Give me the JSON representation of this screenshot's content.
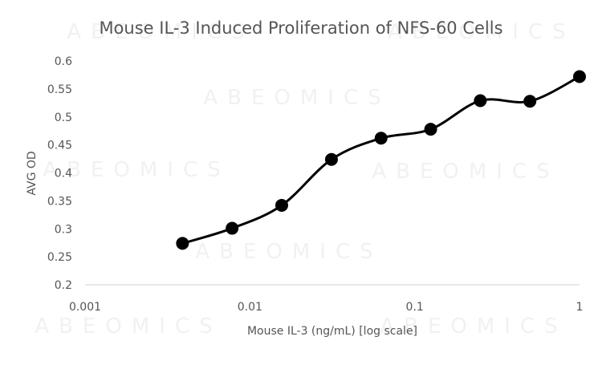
{
  "chart_data": {
    "type": "line",
    "title": "Mouse IL-3 Induced Proliferation of NFS-60 Cells",
    "xlabel": "Mouse IL-3 (ng/mL) [log scale]",
    "ylabel": "AVG OD",
    "xscale": "log",
    "xlim": [
      0.001,
      1
    ],
    "ylim": [
      0.2,
      0.6
    ],
    "xticks": [
      {
        "value": 0.001,
        "label": "0.001"
      },
      {
        "value": 0.01,
        "label": "0.01"
      },
      {
        "value": 0.1,
        "label": "0.1"
      },
      {
        "value": 1,
        "label": "1"
      }
    ],
    "yticks": [
      {
        "value": 0.2,
        "label": "0.2"
      },
      {
        "value": 0.25,
        "label": "0.25"
      },
      {
        "value": 0.3,
        "label": "0.3"
      },
      {
        "value": 0.35,
        "label": "0.35"
      },
      {
        "value": 0.4,
        "label": "0.4"
      },
      {
        "value": 0.45,
        "label": "0.45"
      },
      {
        "value": 0.5,
        "label": "0.5"
      },
      {
        "value": 0.55,
        "label": "0.55"
      },
      {
        "value": 0.6,
        "label": "0.6"
      }
    ],
    "grid": false,
    "series": [
      {
        "name": "AVG OD",
        "color": "#000000",
        "x": [
          0.0039,
          0.0078,
          0.0156,
          0.03125,
          0.0625,
          0.125,
          0.25,
          0.5,
          1
        ],
        "y": [
          0.274,
          0.301,
          0.342,
          0.424,
          0.462,
          0.478,
          0.529,
          0.528,
          0.572
        ]
      }
    ],
    "watermark": "ABEOMICS"
  }
}
